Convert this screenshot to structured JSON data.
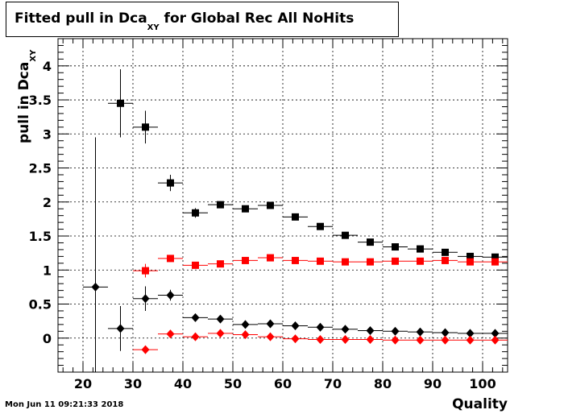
{
  "title": {
    "main": "Fitted pull in Dca",
    "sub": "XY",
    "rest": " for Global Rec All NoHits"
  },
  "timestamp": "Mon Jun 11 09:21:33 2018",
  "colors": {
    "series1": "#000000",
    "series2": "#ff0000",
    "grid": "#000000",
    "axis": "#000000"
  },
  "chart_data": {
    "type": "scatter",
    "title": "Fitted pull in Dca_XY for Global Rec All NoHits",
    "xlabel": "Quality",
    "ylabel": "pull in Dca_XY",
    "xlim": [
      15,
      105
    ],
    "ylim": [
      -0.5,
      4.4
    ],
    "grid": true,
    "x_ticks": [
      20,
      30,
      40,
      50,
      60,
      70,
      80,
      90,
      100
    ],
    "y_ticks": [
      0,
      0.5,
      1,
      1.5,
      2,
      2.5,
      3,
      3.5,
      4
    ],
    "x_tick_labels": [
      "20",
      "30",
      "40",
      "50",
      "60",
      "70",
      "80",
      "90",
      "100"
    ],
    "y_tick_labels": [
      "0",
      "0.5",
      "1",
      "1.5",
      "2",
      "2.5",
      "3",
      "3.5",
      "4"
    ],
    "x_bin_half_width": 2.5,
    "series": [
      {
        "color": "#000000",
        "marker": "square",
        "x": [
          27.5,
          32.5,
          37.5,
          42.5,
          47.5,
          52.5,
          57.5,
          62.5,
          67.5,
          72.5,
          77.5,
          82.5,
          87.5,
          92.5,
          97.5,
          102.5
        ],
        "y": [
          3.45,
          3.1,
          2.28,
          1.84,
          1.96,
          1.9,
          1.95,
          1.78,
          1.64,
          1.51,
          1.41,
          1.34,
          1.31,
          1.26,
          1.2,
          1.19
        ],
        "err": [
          0.5,
          0.24,
          0.12,
          0.07,
          0.05,
          0.03,
          0.03,
          0.03,
          0.03,
          0.03,
          0.03,
          0.02,
          0.02,
          0.02,
          0.02,
          0.02
        ]
      },
      {
        "color": "#ff0000",
        "marker": "square",
        "x": [
          32.5,
          37.5,
          42.5,
          47.5,
          52.5,
          57.5,
          62.5,
          67.5,
          72.5,
          77.5,
          82.5,
          87.5,
          92.5,
          97.5,
          102.5
        ],
        "y": [
          0.99,
          1.17,
          1.07,
          1.09,
          1.14,
          1.18,
          1.14,
          1.13,
          1.12,
          1.12,
          1.13,
          1.13,
          1.14,
          1.12,
          1.12
        ],
        "err": [
          0.1,
          0.05,
          0.03,
          0.02,
          0.02,
          0.02,
          0.02,
          0.02,
          0.02,
          0.02,
          0.02,
          0.02,
          0.02,
          0.02,
          0.02
        ]
      },
      {
        "color": "#000000",
        "marker": "diamond",
        "x": [
          22.5,
          27.5,
          32.5,
          37.5,
          42.5,
          47.5,
          52.5,
          57.5,
          62.5,
          67.5,
          72.5,
          77.5,
          82.5,
          87.5,
          92.5,
          97.5,
          102.5
        ],
        "y": [
          0.75,
          0.14,
          0.58,
          0.63,
          0.3,
          0.28,
          0.2,
          0.21,
          0.18,
          0.16,
          0.13,
          0.11,
          0.1,
          0.09,
          0.08,
          0.07,
          0.07
        ],
        "err": [
          2.2,
          0.33,
          0.18,
          0.08,
          0.03,
          0.03,
          0.02,
          0.02,
          0.02,
          0.02,
          0.02,
          0.02,
          0.02,
          0.02,
          0.02,
          0.02,
          0.02
        ]
      },
      {
        "color": "#ff0000",
        "marker": "diamond",
        "x": [
          32.5,
          37.5,
          42.5,
          47.5,
          52.5,
          57.5,
          62.5,
          67.5,
          72.5,
          77.5,
          82.5,
          87.5,
          92.5,
          97.5,
          102.5
        ],
        "y": [
          -0.17,
          0.06,
          0.02,
          0.07,
          0.05,
          0.02,
          -0.01,
          -0.02,
          -0.02,
          -0.02,
          -0.03,
          -0.03,
          -0.03,
          -0.03,
          -0.03
        ],
        "err": [
          0.06,
          0.03,
          0.02,
          0.02,
          0.02,
          0.02,
          0.01,
          0.01,
          0.01,
          0.01,
          0.01,
          0.01,
          0.01,
          0.01,
          0.01
        ]
      }
    ]
  }
}
